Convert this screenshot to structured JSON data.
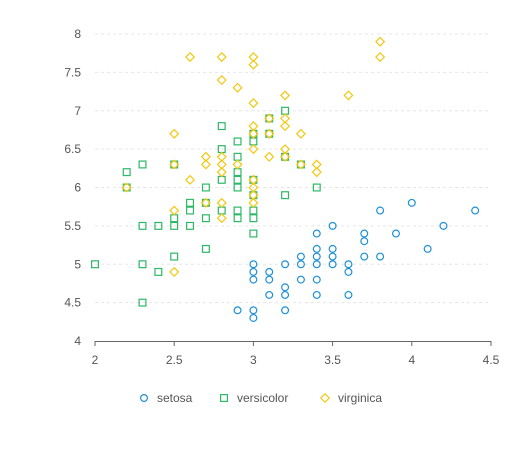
{
  "chart_data": {
    "type": "scatter",
    "title": "",
    "xlabel": "",
    "ylabel": "",
    "xlim": [
      2,
      4.5
    ],
    "ylim": [
      4,
      8
    ],
    "x_ticks": [
      2,
      2.5,
      3,
      3.5,
      4,
      4.5
    ],
    "x_tick_labels": [
      "2",
      "2.5",
      "3",
      "3.5",
      "4",
      "4.5"
    ],
    "y_ticks": [
      4,
      4.5,
      5,
      5.5,
      6,
      6.5,
      7,
      7.5,
      8
    ],
    "y_tick_labels": [
      "4",
      "4.5",
      "5",
      "5.5",
      "6",
      "6.5",
      "7",
      "7.5",
      "8"
    ],
    "grid": "horizontal dashed",
    "legend_position": "bottom",
    "series": [
      {
        "name": "setosa",
        "marker": "circle",
        "color": "#1e90d6",
        "points": [
          [
            3.0,
            4.3
          ],
          [
            3.0,
            4.4
          ],
          [
            2.9,
            4.4
          ],
          [
            3.2,
            4.4
          ],
          [
            3.1,
            4.6
          ],
          [
            3.2,
            4.6
          ],
          [
            3.4,
            4.6
          ],
          [
            3.6,
            4.6
          ],
          [
            3.2,
            4.7
          ],
          [
            3.3,
            4.8
          ],
          [
            3.4,
            4.8
          ],
          [
            3.0,
            4.8
          ],
          [
            3.1,
            4.8
          ],
          [
            3.0,
            4.9
          ],
          [
            3.1,
            4.9
          ],
          [
            3.6,
            4.9
          ],
          [
            3.0,
            5.0
          ],
          [
            3.2,
            5.0
          ],
          [
            3.3,
            5.0
          ],
          [
            3.4,
            5.0
          ],
          [
            3.5,
            5.0
          ],
          [
            3.6,
            5.0
          ],
          [
            3.3,
            5.1
          ],
          [
            3.4,
            5.1
          ],
          [
            3.5,
            5.1
          ],
          [
            3.7,
            5.1
          ],
          [
            3.8,
            5.1
          ],
          [
            3.4,
            5.2
          ],
          [
            3.5,
            5.2
          ],
          [
            4.1,
            5.2
          ],
          [
            3.7,
            5.3
          ],
          [
            3.4,
            5.4
          ],
          [
            3.7,
            5.4
          ],
          [
            3.9,
            5.4
          ],
          [
            3.5,
            5.5
          ],
          [
            4.2,
            5.5
          ],
          [
            3.8,
            5.7
          ],
          [
            4.4,
            5.7
          ],
          [
            4.0,
            5.8
          ]
        ]
      },
      {
        "name": "versicolor",
        "marker": "square",
        "color": "#2cb866",
        "points": [
          [
            2.0,
            5.0
          ],
          [
            2.3,
            5.0
          ],
          [
            2.4,
            4.9
          ],
          [
            2.3,
            4.5
          ],
          [
            2.5,
            5.1
          ],
          [
            2.3,
            5.5
          ],
          [
            2.4,
            5.5
          ],
          [
            2.5,
            5.5
          ],
          [
            2.6,
            5.5
          ],
          [
            2.5,
            5.6
          ],
          [
            2.7,
            5.6
          ],
          [
            2.9,
            5.6
          ],
          [
            3.0,
            5.6
          ],
          [
            2.6,
            5.7
          ],
          [
            2.8,
            5.7
          ],
          [
            2.9,
            5.7
          ],
          [
            3.0,
            5.7
          ],
          [
            2.6,
            5.8
          ],
          [
            2.7,
            5.8
          ],
          [
            2.7,
            6.0
          ],
          [
            2.2,
            6.0
          ],
          [
            3.0,
            5.9
          ],
          [
            3.2,
            5.9
          ],
          [
            2.9,
            6.0
          ],
          [
            3.4,
            6.0
          ],
          [
            2.8,
            6.1
          ],
          [
            2.9,
            6.1
          ],
          [
            3.0,
            6.1
          ],
          [
            2.2,
            6.2
          ],
          [
            2.9,
            6.2
          ],
          [
            2.3,
            6.3
          ],
          [
            2.5,
            6.3
          ],
          [
            3.3,
            6.3
          ],
          [
            2.9,
            6.4
          ],
          [
            3.2,
            6.4
          ],
          [
            2.8,
            6.5
          ],
          [
            2.9,
            6.6
          ],
          [
            3.0,
            6.6
          ],
          [
            3.0,
            6.7
          ],
          [
            3.1,
            6.7
          ],
          [
            2.8,
            6.8
          ],
          [
            3.1,
            6.9
          ],
          [
            3.2,
            7.0
          ],
          [
            3.0,
            5.4
          ],
          [
            2.7,
            5.2
          ]
        ]
      },
      {
        "name": "virginica",
        "marker": "diamond",
        "color": "#f2c811",
        "points": [
          [
            2.5,
            4.9
          ],
          [
            2.5,
            5.7
          ],
          [
            2.8,
            5.6
          ],
          [
            2.8,
            5.8
          ],
          [
            2.7,
            5.8
          ],
          [
            3.0,
            5.8
          ],
          [
            3.0,
            5.9
          ],
          [
            2.2,
            6.0
          ],
          [
            3.0,
            6.0
          ],
          [
            2.6,
            6.1
          ],
          [
            3.0,
            6.1
          ],
          [
            2.8,
            6.2
          ],
          [
            3.4,
            6.2
          ],
          [
            2.5,
            6.3
          ],
          [
            2.7,
            6.3
          ],
          [
            2.8,
            6.3
          ],
          [
            2.9,
            6.3
          ],
          [
            3.3,
            6.3
          ],
          [
            3.4,
            6.3
          ],
          [
            2.7,
            6.4
          ],
          [
            2.8,
            6.4
          ],
          [
            3.1,
            6.4
          ],
          [
            3.2,
            6.4
          ],
          [
            3.0,
            6.5
          ],
          [
            3.2,
            6.5
          ],
          [
            2.5,
            6.7
          ],
          [
            3.0,
            6.7
          ],
          [
            3.1,
            6.7
          ],
          [
            3.3,
            6.7
          ],
          [
            3.0,
            6.8
          ],
          [
            3.2,
            6.8
          ],
          [
            3.1,
            6.9
          ],
          [
            3.2,
            6.9
          ],
          [
            3.0,
            7.1
          ],
          [
            3.2,
            7.2
          ],
          [
            3.6,
            7.2
          ],
          [
            2.9,
            7.3
          ],
          [
            2.8,
            7.4
          ],
          [
            3.0,
            7.6
          ],
          [
            2.6,
            7.7
          ],
          [
            2.8,
            7.7
          ],
          [
            3.0,
            7.7
          ],
          [
            3.8,
            7.7
          ],
          [
            3.8,
            7.9
          ]
        ]
      }
    ]
  }
}
